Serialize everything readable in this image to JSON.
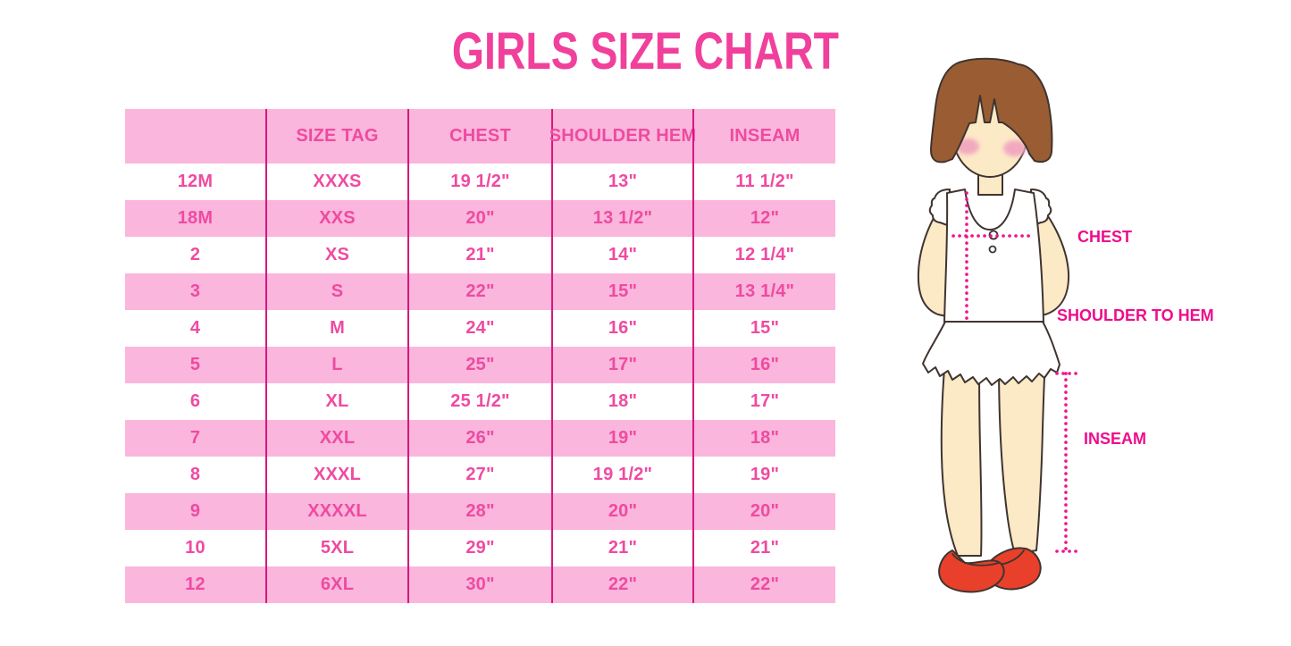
{
  "title": "GIRLS SIZE CHART",
  "chart_data": {
    "type": "table",
    "title": "GIRLS SIZE CHART",
    "columns": [
      "",
      "SIZE TAG",
      "CHEST",
      "SHOULDER HEM",
      "INSEAM"
    ],
    "rows": [
      [
        "12M",
        "XXXS",
        "19 1/2\"",
        "13\"",
        "11 1/2\""
      ],
      [
        "18M",
        "XXS",
        "20\"",
        "13 1/2\"",
        "12\""
      ],
      [
        "2",
        "XS",
        "21\"",
        "14\"",
        "12 1/4\""
      ],
      [
        "3",
        "S",
        "22\"",
        "15\"",
        "13 1/4\""
      ],
      [
        "4",
        "M",
        "24\"",
        "16\"",
        "15\""
      ],
      [
        "5",
        "L",
        "25\"",
        "17\"",
        "16\""
      ],
      [
        "6",
        "XL",
        "25 1/2\"",
        "18\"",
        "17\""
      ],
      [
        "7",
        "XXL",
        "26\"",
        "19\"",
        "18\""
      ],
      [
        "8",
        "XXXL",
        "27\"",
        "19 1/2\"",
        "19\""
      ],
      [
        "9",
        "XXXXL",
        "28\"",
        "20\"",
        "20\""
      ],
      [
        "10",
        "5XL",
        "29\"",
        "21\"",
        "21\""
      ],
      [
        "12",
        "6XL",
        "30\"",
        "22\"",
        "22\""
      ]
    ],
    "row_striping": "alternating white and pink, first data row white, header pink",
    "legend_position": "none"
  },
  "figure": {
    "labels": {
      "chest": "CHEST",
      "shoulder_to_hem": "SHOULDER TO HEM",
      "inseam": "INSEAM"
    }
  },
  "colors": {
    "title_pink": "#F0409C",
    "table_text_pink": "#EF4AA1",
    "row_pink": "#FAB6DC",
    "grid_magenta": "#D6187E",
    "annotation_magenta": "#EE0D8C",
    "dotted_line_pink": "#F0128D",
    "hair_brown": "#9A5C33",
    "skin": "#FCE9C6",
    "blush": "#F2A9BF",
    "shoe_red": "#E8402A",
    "outline_dark": "#3F3430"
  }
}
